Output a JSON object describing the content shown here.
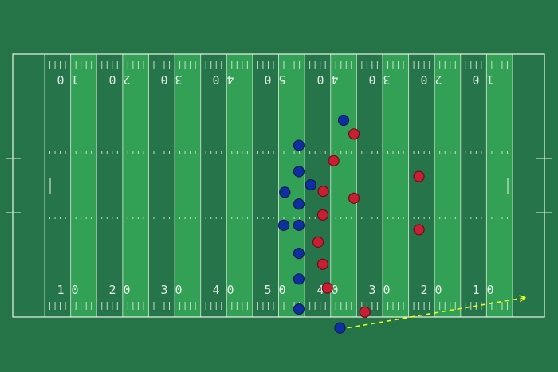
{
  "field": {
    "colors": {
      "dark_stripe": "#26744a",
      "light_stripe": "#32a055",
      "outer": "#257447",
      "lines": "#e9f5e6",
      "team_blue": "#0d2fa0",
      "team_red": "#c81f35",
      "route_arrow": "#e6ff1e"
    },
    "yard_numbers_top": [
      "1 0",
      "2 0",
      "3 0",
      "4 0",
      "5 0",
      "4 0",
      "3 0",
      "2 0",
      "1 0"
    ],
    "yard_numbers_bottom": [
      "1 0",
      "2 0",
      "3 0",
      "4 0",
      "5 0",
      "4 0",
      "3 0",
      "2 0",
      "1 0"
    ]
  },
  "players": {
    "blue": [
      {
        "id": "b1",
        "yard": 57.5,
        "lat": 13.4
      },
      {
        "id": "b2",
        "yard": 48.9,
        "lat": 18.5
      },
      {
        "id": "b3",
        "yard": 48.9,
        "lat": 23.8
      },
      {
        "id": "b4",
        "yard": 51.2,
        "lat": 26.5
      },
      {
        "id": "b5",
        "yard": 46.2,
        "lat": 28.0
      },
      {
        "id": "b6",
        "yard": 48.9,
        "lat": 30.4
      },
      {
        "id": "b7",
        "yard": 46.0,
        "lat": 34.7
      },
      {
        "id": "b8",
        "yard": 48.9,
        "lat": 34.7
      },
      {
        "id": "b9",
        "yard": 48.9,
        "lat": 40.4
      },
      {
        "id": "b10",
        "yard": 48.9,
        "lat": 45.6
      },
      {
        "id": "b11",
        "yard": 48.9,
        "lat": 51.7
      },
      {
        "id": "b12",
        "yard": 56.8,
        "lat": 55.5
      }
    ],
    "red": [
      {
        "id": "r1",
        "yard": 59.5,
        "lat": 16.2
      },
      {
        "id": "r2",
        "yard": 55.6,
        "lat": 21.6
      },
      {
        "id": "r3",
        "yard": 72.0,
        "lat": 24.8
      },
      {
        "id": "r4",
        "yard": 53.6,
        "lat": 27.8
      },
      {
        "id": "r5",
        "yard": 59.5,
        "lat": 29.2
      },
      {
        "id": "r6",
        "yard": 53.5,
        "lat": 32.6
      },
      {
        "id": "r7",
        "yard": 52.6,
        "lat": 38.1
      },
      {
        "id": "r8",
        "yard": 72.0,
        "lat": 35.6
      },
      {
        "id": "r9",
        "yard": 53.5,
        "lat": 42.6
      },
      {
        "id": "r10",
        "yard": 54.4,
        "lat": 47.4
      },
      {
        "id": "r11",
        "yard": 61.6,
        "lat": 52.3
      }
    ]
  },
  "route": {
    "from": {
      "yard": 58.2,
      "lat": 55.5
    },
    "to": {
      "yard": 92.2,
      "lat": 49.4
    }
  }
}
